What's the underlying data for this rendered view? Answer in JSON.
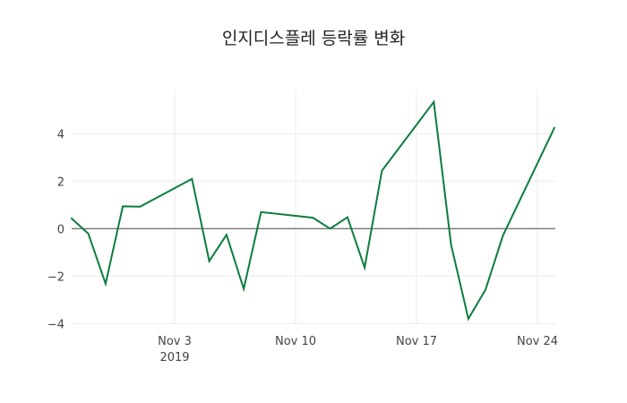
{
  "chart_data": {
    "type": "line",
    "title": "인지디스플레 등락률 변화",
    "xlabel": "",
    "ylabel": "",
    "ylim": [
      -4.2,
      5.8
    ],
    "grid": true,
    "legend": "none",
    "line_color": "#0b7d3e",
    "x_tick_labels": [
      "Nov 3\n2019",
      "Nov 10",
      "Nov 17",
      "Nov 24"
    ],
    "y_tick_labels": [
      "−4",
      "−2",
      "0",
      "2",
      "4"
    ],
    "x": [
      "2019-10-28",
      "2019-10-29",
      "2019-10-30",
      "2019-10-31",
      "2019-11-01",
      "2019-11-04",
      "2019-11-05",
      "2019-11-06",
      "2019-11-07",
      "2019-11-08",
      "2019-11-11",
      "2019-11-12",
      "2019-11-13",
      "2019-11-14",
      "2019-11-15",
      "2019-11-18",
      "2019-11-19",
      "2019-11-20",
      "2019-11-21",
      "2019-11-22",
      "2019-11-25"
    ],
    "values": [
      0.45,
      -0.21,
      -2.32,
      0.94,
      0.93,
      2.1,
      -1.37,
      -0.26,
      -2.54,
      0.7,
      0.46,
      0.0,
      0.48,
      -1.64,
      2.44,
      5.34,
      -0.68,
      -3.8,
      -2.57,
      -0.3,
      4.28
    ]
  }
}
